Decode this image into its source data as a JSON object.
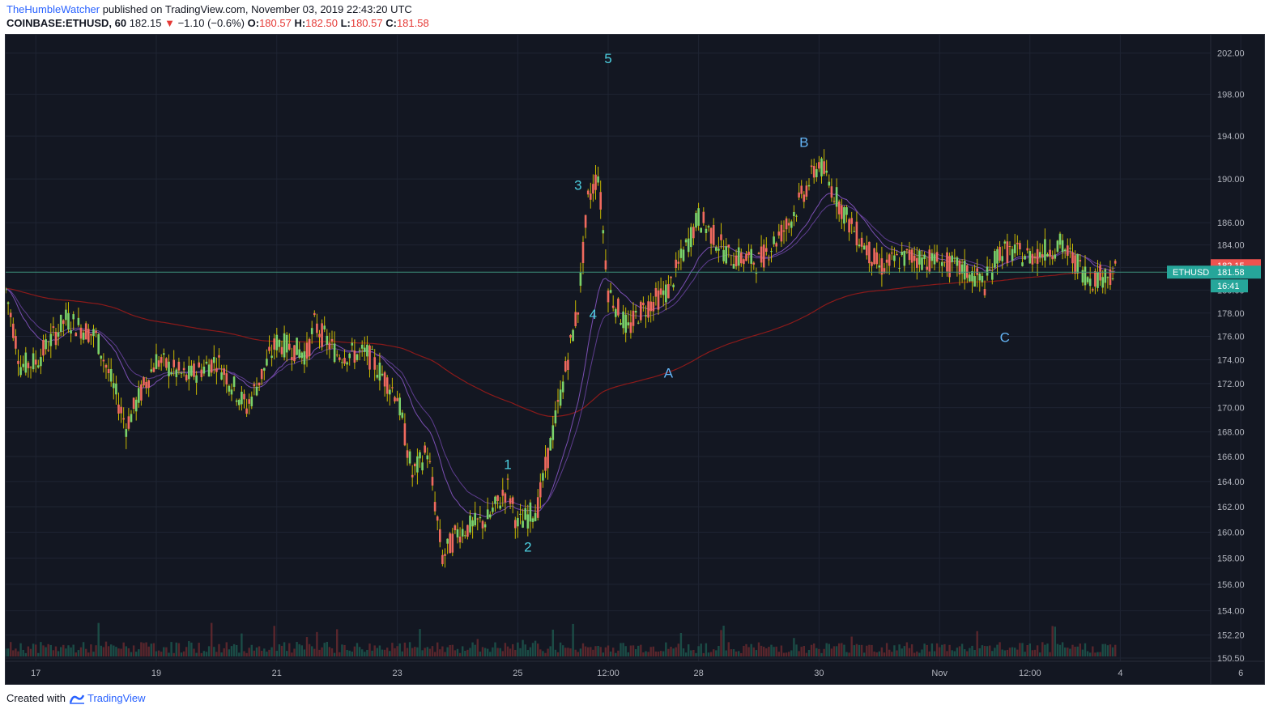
{
  "header": {
    "author": "TheHumbleWatcher",
    "published": "published on TradingView.com, November 03, 2019 22:43:20 UTC",
    "symbol": "COINBASE:ETHUSD, 60",
    "last": "182.15",
    "change_arrow": "▼",
    "change": "−1.10 (−0.6%)",
    "o_label": "O:",
    "o_value": "180.57",
    "h_label": "H:",
    "h_value": "182.50",
    "l_label": "L:",
    "l_value": "180.57",
    "c_label": "C:",
    "c_value": "181.58"
  },
  "footer": {
    "created": "Created with",
    "brand": "TradingView"
  },
  "colors": {
    "background": "#131722",
    "grid": "#1f2433",
    "up": "#26a69a",
    "down": "#ef5350",
    "wick": "#c8b800",
    "ema_fast": "#7b4fb3",
    "ema_slow": "#8b1a1a",
    "wave_label_impulse": "#4dd0e1",
    "wave_label_corrective": "#64b5f6",
    "price_badge_red": "#ef5350",
    "price_badge_green": "#26a69a"
  },
  "chart_data": {
    "type": "candlestick",
    "symbol": "ETHUSD",
    "interval": "60",
    "y_axis": {
      "scale": "log",
      "ylim": [
        150.5,
        203
      ],
      "ticks": [
        "202.00",
        "198.00",
        "194.00",
        "190.00",
        "186.00",
        "184.00",
        "182.00",
        "180.00",
        "178.00",
        "176.00",
        "174.00",
        "172.00",
        "170.00",
        "168.00",
        "166.00",
        "164.00",
        "162.00",
        "160.00",
        "158.00",
        "156.00",
        "154.00",
        "152.20",
        "150.50"
      ]
    },
    "x_axis": {
      "range": [
        "2019-10-16T12:00",
        "2019-11-05T12:00"
      ],
      "ticks": [
        {
          "label": "17",
          "t": "2019-10-17T00:00"
        },
        {
          "label": "19",
          "t": "2019-10-19T00:00"
        },
        {
          "label": "21",
          "t": "2019-10-21T00:00"
        },
        {
          "label": "23",
          "t": "2019-10-23T00:00"
        },
        {
          "label": "25",
          "t": "2019-10-25T00:00"
        },
        {
          "label": "12:00",
          "t": "2019-10-26T12:00"
        },
        {
          "label": "28",
          "t": "2019-10-28T00:00"
        },
        {
          "label": "30",
          "t": "2019-10-30T00:00"
        },
        {
          "label": "Nov",
          "t": "2019-11-01T00:00"
        },
        {
          "label": "12:00",
          "t": "2019-11-02T12:00"
        },
        {
          "label": "4",
          "t": "2019-11-04T00:00"
        },
        {
          "label": "6",
          "t": "2019-11-06T00:00"
        }
      ]
    },
    "price_path": [
      {
        "t": "2019-10-16T12:00",
        "p": 180.0
      },
      {
        "t": "2019-10-16T18:00",
        "p": 173.5
      },
      {
        "t": "2019-10-17T00:00",
        "p": 173.8
      },
      {
        "t": "2019-10-17T12:00",
        "p": 177.5
      },
      {
        "t": "2019-10-18T00:00",
        "p": 176.0
      },
      {
        "t": "2019-10-18T12:00",
        "p": 168.5
      },
      {
        "t": "2019-10-19T00:00",
        "p": 174.0
      },
      {
        "t": "2019-10-19T12:00",
        "p": 172.5
      },
      {
        "t": "2019-10-20T00:00",
        "p": 174.0
      },
      {
        "t": "2019-10-20T12:00",
        "p": 170.0
      },
      {
        "t": "2019-10-21T00:00",
        "p": 175.5
      },
      {
        "t": "2019-10-21T12:00",
        "p": 174.5
      },
      {
        "t": "2019-10-21T15:00",
        "p": 177.0
      },
      {
        "t": "2019-10-22T00:00",
        "p": 174.5
      },
      {
        "t": "2019-10-22T12:00",
        "p": 174.5
      },
      {
        "t": "2019-10-23T00:00",
        "p": 171.0
      },
      {
        "t": "2019-10-23T06:00",
        "p": 164.5
      },
      {
        "t": "2019-10-23T12:00",
        "p": 166.5
      },
      {
        "t": "2019-10-23T18:00",
        "p": 158.0
      },
      {
        "t": "2019-10-24T00:00",
        "p": 160.0
      },
      {
        "t": "2019-10-24T12:00",
        "p": 161.0
      },
      {
        "t": "2019-10-24T20:00",
        "p": 163.5
      },
      {
        "t": "2019-10-25T00:00",
        "p": 160.5
      },
      {
        "t": "2019-10-25T08:00",
        "p": 162.0
      },
      {
        "t": "2019-10-25T18:00",
        "p": 172.0
      },
      {
        "t": "2019-10-26T00:00",
        "p": 178.5
      },
      {
        "t": "2019-10-26T04:00",
        "p": 188.0
      },
      {
        "t": "2019-10-26T08:00",
        "p": 190.5
      },
      {
        "t": "2019-10-26T12:00",
        "p": 180.0
      },
      {
        "t": "2019-10-26T20:00",
        "p": 176.5
      },
      {
        "t": "2019-10-27T00:00",
        "p": 178.0
      },
      {
        "t": "2019-10-27T12:00",
        "p": 180.0
      },
      {
        "t": "2019-10-28T00:00",
        "p": 186.5
      },
      {
        "t": "2019-10-28T12:00",
        "p": 183.0
      },
      {
        "t": "2019-10-29T00:00",
        "p": 182.5
      },
      {
        "t": "2019-10-29T12:00",
        "p": 186.0
      },
      {
        "t": "2019-10-30T00:00",
        "p": 191.5
      },
      {
        "t": "2019-10-30T12:00",
        "p": 186.0
      },
      {
        "t": "2019-10-31T00:00",
        "p": 182.0
      },
      {
        "t": "2019-10-31T12:00",
        "p": 183.0
      },
      {
        "t": "2019-11-01T00:00",
        "p": 182.5
      },
      {
        "t": "2019-11-01T12:00",
        "p": 181.5
      },
      {
        "t": "2019-11-01T18:00",
        "p": 180.5
      },
      {
        "t": "2019-11-02T00:00",
        "p": 183.5
      },
      {
        "t": "2019-11-02T12:00",
        "p": 183.0
      },
      {
        "t": "2019-11-03T00:00",
        "p": 184.0
      },
      {
        "t": "2019-11-03T12:00",
        "p": 181.0
      },
      {
        "t": "2019-11-03T22:00",
        "p": 181.58
      }
    ],
    "wave_labels": [
      {
        "label": "1",
        "t": "2019-10-24T20:00",
        "p": 165.0,
        "type": "impulse"
      },
      {
        "label": "2",
        "t": "2019-10-25T04:00",
        "p": 158.5,
        "type": "impulse"
      },
      {
        "label": "3",
        "t": "2019-10-26T00:00",
        "p": 189.0,
        "type": "impulse"
      },
      {
        "label": "4",
        "t": "2019-10-26T06:00",
        "p": 177.5,
        "type": "impulse"
      },
      {
        "label": "5",
        "t": "2019-10-26T12:00",
        "p": 201.0,
        "type": "impulse"
      },
      {
        "label": "A",
        "t": "2019-10-27T12:00",
        "p": 172.5,
        "type": "corrective"
      },
      {
        "label": "B",
        "t": "2019-10-29T18:00",
        "p": 193.0,
        "type": "corrective"
      },
      {
        "label": "C",
        "t": "2019-11-02T02:00",
        "p": 175.5,
        "type": "corrective"
      }
    ],
    "price_badges": [
      {
        "label": "182.15",
        "color": "red"
      },
      {
        "label": "ETHUSD",
        "value": "181.58",
        "color": "green"
      },
      {
        "label": "16:41",
        "color": "green"
      }
    ]
  }
}
